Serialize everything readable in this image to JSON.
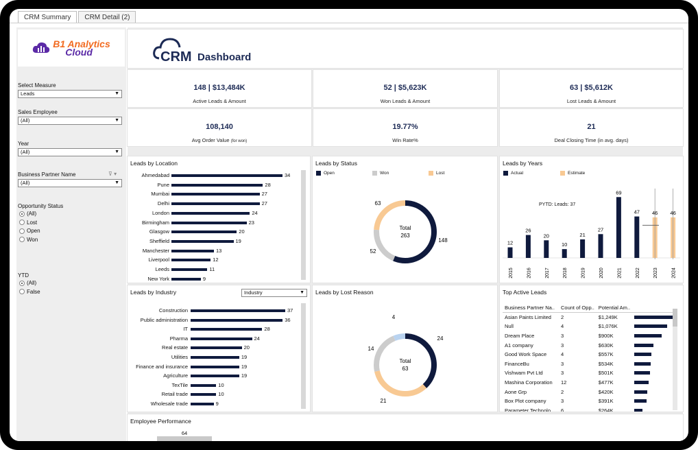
{
  "tabs": [
    "CRM Summary",
    "CRM Detail (2)"
  ],
  "logo": {
    "line1": "B1 Analytics",
    "line2": "Cloud"
  },
  "header": {
    "crm": "CRM",
    "title": "Dashboard"
  },
  "filters": {
    "measure_label": "Select Measure",
    "measure_value": "Leads",
    "employee_label": "Sales Employee",
    "employee_value": "(All)",
    "year_label": "Year",
    "year_value": "(All)",
    "bp_label": "Business Partner Name",
    "bp_value": "(All)",
    "status_label": "Opportunity Status",
    "status_options": [
      "(All)",
      "Lost",
      "Open",
      "Won"
    ],
    "ytd_label": "YTD",
    "ytd_options": [
      "(All)",
      "False"
    ]
  },
  "kpis": [
    {
      "value": "148 | $13,484K",
      "label": "Active Leads & Amount"
    },
    {
      "value": "52 | $5,623K",
      "label": "Won Leads & Amount"
    },
    {
      "value": "63 | $5,612K",
      "label": "Lost Leads & Amount"
    },
    {
      "value": "108,140",
      "label": "Avg Order Value",
      "note": "(for won)"
    },
    {
      "value": "19.77%",
      "label": "Win Rate%"
    },
    {
      "value": "21",
      "label": "Deal Closing Time (in avg. days)"
    }
  ],
  "location": {
    "title": "Leads by Location",
    "items": [
      {
        "name": "Ahmedabad",
        "value": 34
      },
      {
        "name": "Pune",
        "value": 28
      },
      {
        "name": "Mumbai",
        "value": 27
      },
      {
        "name": "Delhi",
        "value": 27
      },
      {
        "name": "London",
        "value": 24
      },
      {
        "name": "Birmingham",
        "value": 23
      },
      {
        "name": "Glasgow",
        "value": 20
      },
      {
        "name": "Sheffield",
        "value": 19
      },
      {
        "name": "Manchester",
        "value": 13
      },
      {
        "name": "Liverpool",
        "value": 12
      },
      {
        "name": "Leeds",
        "value": 11
      },
      {
        "name": "New York",
        "value": 9
      }
    ]
  },
  "status": {
    "title": "Leads by Status",
    "legend": [
      {
        "name": "Open",
        "color": "#0f1a3d"
      },
      {
        "name": "Won",
        "color": "#cccccc"
      },
      {
        "name": "Lost",
        "color": "#f8c993"
      }
    ],
    "total_label": "Total",
    "total": "263",
    "slices": [
      {
        "name": "Open",
        "value": 148,
        "color": "#0f1a3d"
      },
      {
        "name": "Won",
        "value": 52,
        "color": "#cccccc"
      },
      {
        "name": "Lost",
        "value": 63,
        "color": "#f8c993"
      }
    ]
  },
  "years": {
    "title": "Leads by Years",
    "legend": [
      {
        "name": "Actual",
        "color": "#0f1a3d"
      },
      {
        "name": "Estimate",
        "color": "#f8c993"
      }
    ],
    "pytd_label": "PYTD: Leads:",
    "pytd_value": "37",
    "items": [
      {
        "year": "2015",
        "value": 12,
        "type": "actual"
      },
      {
        "year": "2016",
        "value": 26,
        "type": "actual"
      },
      {
        "year": "2017",
        "value": 20,
        "type": "actual"
      },
      {
        "year": "2018",
        "value": 10,
        "type": "actual"
      },
      {
        "year": "2019",
        "value": 21,
        "type": "actual"
      },
      {
        "year": "2020",
        "value": 27,
        "type": "actual"
      },
      {
        "year": "2021",
        "value": 69,
        "type": "actual"
      },
      {
        "year": "2022",
        "value": 47,
        "type": "actual"
      },
      {
        "year": "2023",
        "value": 46,
        "type": "estimate"
      },
      {
        "year": "2024",
        "value": 46,
        "type": "estimate"
      }
    ]
  },
  "industry": {
    "title": "Leads by Industry",
    "dropdown": "Industry",
    "items": [
      {
        "name": "Construction",
        "value": 37
      },
      {
        "name": "Public administration",
        "value": 36
      },
      {
        "name": "IT",
        "value": 28
      },
      {
        "name": "Pharma",
        "value": 24
      },
      {
        "name": "Real estate",
        "value": 20
      },
      {
        "name": "Utilities",
        "value": 19
      },
      {
        "name": "Finance and insurance",
        "value": 19
      },
      {
        "name": "Agriculture",
        "value": 19
      },
      {
        "name": "TexTile",
        "value": 10
      },
      {
        "name": "Retail trade",
        "value": 10
      },
      {
        "name": "Wholesale trade",
        "value": 9
      }
    ]
  },
  "lost_reason": {
    "title": "Leads by Lost Reason",
    "total_label": "Total",
    "total": "63",
    "slices": [
      {
        "value": 24,
        "color": "#0f1a3d"
      },
      {
        "value": 21,
        "color": "#f8c993"
      },
      {
        "value": 14,
        "color": "#cccccc"
      },
      {
        "value": 4,
        "color": "#b9d3f0"
      }
    ]
  },
  "top_leads": {
    "title": "Top Active Leads",
    "headers": [
      "Business Partner Na..",
      "Count of Opp..",
      "Potential Am.."
    ],
    "rows": [
      {
        "name": "Asian Paints Limited",
        "count": "2",
        "amount": "$1,249K",
        "bar": 1249
      },
      {
        "name": "Null",
        "count": "4",
        "amount": "$1,076K",
        "bar": 1076
      },
      {
        "name": "Dream Place",
        "count": "3",
        "amount": "$900K",
        "bar": 900
      },
      {
        "name": "A1 company",
        "count": "3",
        "amount": "$630K",
        "bar": 630
      },
      {
        "name": "Good Work Space",
        "count": "4",
        "amount": "$557K",
        "bar": 557
      },
      {
        "name": "FinanceBu",
        "count": "3",
        "amount": "$534K",
        "bar": 534
      },
      {
        "name": "Vishwam Pvt Ltd",
        "count": "3",
        "amount": "$501K",
        "bar": 501
      },
      {
        "name": "Mashina Corporation",
        "count": "12",
        "amount": "$477K",
        "bar": 477
      },
      {
        "name": "Aone Grp",
        "count": "2",
        "amount": "$420K",
        "bar": 420
      },
      {
        "name": "Box Plot company",
        "count": "3",
        "amount": "$391K",
        "bar": 391
      },
      {
        "name": "Parameter Technolo...",
        "count": "6",
        "amount": "$264K",
        "bar": 264
      }
    ]
  },
  "employee": {
    "title": "Employee Performance",
    "value": "64"
  }
}
